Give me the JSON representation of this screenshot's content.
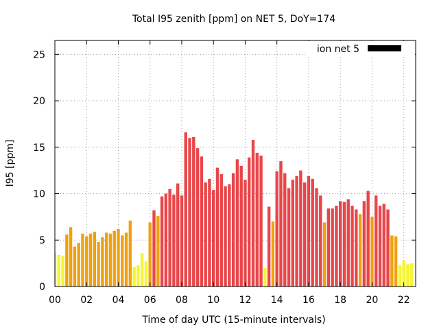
{
  "chart_data": {
    "type": "bar",
    "title": "Total I95 zenith [ppm] on NET 5, DoY=174",
    "xlabel": "Time of day UTC (15-minute intervals)",
    "ylabel": "I95 [ppm]",
    "xlim": [
      0,
      22.75
    ],
    "ylim": [
      0,
      26.5
    ],
    "xticks": [
      0,
      2,
      4,
      6,
      8,
      10,
      12,
      14,
      16,
      18,
      20,
      22
    ],
    "xtick_labels": [
      "00",
      "02",
      "04",
      "06",
      "08",
      "10",
      "12",
      "14",
      "16",
      "18",
      "20",
      "22"
    ],
    "yticks": [
      0,
      5,
      10,
      15,
      20,
      25
    ],
    "ytick_labels": [
      "0",
      "5",
      "10",
      "15",
      "20",
      "25"
    ],
    "grid": true,
    "legend": {
      "label": "ion net 5",
      "color": "#000000",
      "position": "top-right"
    },
    "colors": {
      "yellow": "#f5f531",
      "orange": "#f0a10f",
      "red": "#e8464a"
    },
    "bar_width_hours": 0.19,
    "series": [
      {
        "x": [
          0.0,
          0.25,
          0.5,
          0.75,
          1.0,
          1.25,
          1.5,
          1.75,
          2.0,
          2.25,
          2.5,
          2.75,
          3.0,
          3.25,
          3.5,
          3.75,
          4.0,
          4.25,
          4.5,
          4.75,
          5.0,
          5.25,
          5.5,
          5.75,
          6.0,
          6.25,
          6.5,
          6.75,
          7.0,
          7.25,
          7.5,
          7.75,
          8.0,
          8.25,
          8.5,
          8.75,
          9.0,
          9.25,
          9.5,
          9.75,
          10.0,
          10.25,
          10.5,
          10.75,
          11.0,
          11.25,
          11.5,
          11.75,
          12.0,
          12.25,
          12.5,
          12.75,
          13.0,
          13.25,
          13.5,
          13.75,
          14.0,
          14.25,
          14.5,
          14.75,
          15.0,
          15.25,
          15.5,
          15.75,
          16.0,
          16.25,
          16.5,
          16.75,
          17.0,
          17.25,
          17.5,
          17.75,
          18.0,
          18.25,
          18.5,
          18.75,
          19.0,
          19.25,
          19.5,
          19.75,
          20.0,
          20.25,
          20.5,
          20.75,
          21.0,
          21.25,
          21.5,
          21.75,
          22.0,
          22.25,
          22.5
        ],
        "values": [
          3.6,
          3.4,
          3.3,
          5.6,
          6.4,
          4.3,
          4.7,
          5.7,
          5.4,
          5.7,
          5.9,
          4.8,
          5.3,
          5.8,
          5.7,
          6.0,
          6.2,
          5.5,
          5.8,
          7.1,
          2.1,
          2.3,
          3.6,
          2.7,
          6.9,
          8.2,
          7.6,
          9.7,
          10.0,
          10.5,
          9.9,
          11.1,
          9.8,
          16.6,
          16.0,
          16.1,
          14.9,
          14.0,
          11.2,
          11.6,
          10.4,
          12.8,
          12.1,
          10.8,
          11.0,
          12.2,
          13.7,
          13.0,
          11.5,
          13.9,
          15.8,
          14.4,
          14.1,
          2.0,
          8.6,
          7.0,
          12.4,
          13.5,
          12.2,
          10.6,
          11.5,
          11.9,
          12.5,
          11.2,
          11.9,
          11.6,
          10.6,
          9.8,
          6.9,
          8.4,
          8.4,
          8.7,
          9.2,
          9.1,
          9.4,
          8.7,
          8.3,
          7.8,
          9.2,
          10.3,
          7.5,
          9.8,
          8.7,
          8.9,
          8.3,
          5.5,
          5.4,
          2.3,
          2.8,
          2.4,
          2.5
        ],
        "colors": [
          "yellow",
          "yellow",
          "yellow",
          "orange",
          "orange",
          "orange",
          "orange",
          "orange",
          "orange",
          "orange",
          "orange",
          "orange",
          "orange",
          "orange",
          "orange",
          "orange",
          "orange",
          "orange",
          "orange",
          "orange",
          "yellow",
          "yellow",
          "yellow",
          "yellow",
          "orange",
          "red",
          "orange",
          "red",
          "red",
          "red",
          "red",
          "red",
          "red",
          "red",
          "red",
          "red",
          "red",
          "red",
          "red",
          "red",
          "red",
          "red",
          "red",
          "red",
          "red",
          "red",
          "red",
          "red",
          "red",
          "red",
          "red",
          "red",
          "red",
          "yellow",
          "red",
          "orange",
          "red",
          "red",
          "red",
          "red",
          "red",
          "red",
          "red",
          "red",
          "red",
          "red",
          "red",
          "red",
          "orange",
          "red",
          "red",
          "red",
          "red",
          "red",
          "red",
          "red",
          "red",
          "orange",
          "red",
          "red",
          "orange",
          "red",
          "red",
          "red",
          "red",
          "orange",
          "orange",
          "yellow",
          "yellow",
          "yellow",
          "yellow"
        ]
      }
    ]
  }
}
